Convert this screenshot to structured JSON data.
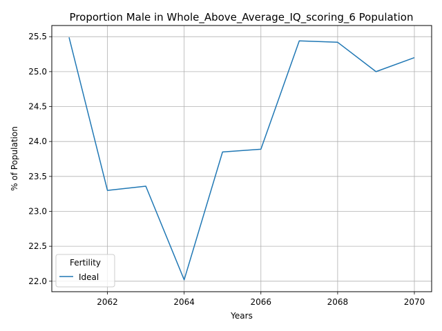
{
  "chart_data": {
    "type": "line",
    "title": "Proportion Male in Whole_Above_Average_IQ_scoring_6 Population",
    "xlabel": "Years",
    "ylabel": "% of Population",
    "xlim": [
      2060.55,
      2070.45
    ],
    "ylim": [
      21.85,
      25.66
    ],
    "xticks": [
      2062,
      2064,
      2066,
      2068,
      2070
    ],
    "yticks": [
      22.0,
      22.5,
      23.0,
      23.5,
      24.0,
      24.5,
      25.0,
      25.5
    ],
    "ytick_labels": [
      "22.0",
      "22.5",
      "23.0",
      "23.5",
      "24.0",
      "24.5",
      "25.0",
      "25.5"
    ],
    "grid": true,
    "legend": {
      "title": "Fertility",
      "placement": "lower-left"
    },
    "series": [
      {
        "name": "Ideal",
        "color": "#1f77b4",
        "x": [
          2061,
          2062,
          2063,
          2064,
          2065,
          2066,
          2067,
          2068,
          2069,
          2070
        ],
        "y": [
          25.49,
          23.3,
          23.36,
          22.02,
          23.85,
          23.89,
          25.44,
          25.42,
          25.0,
          25.2
        ]
      }
    ]
  }
}
